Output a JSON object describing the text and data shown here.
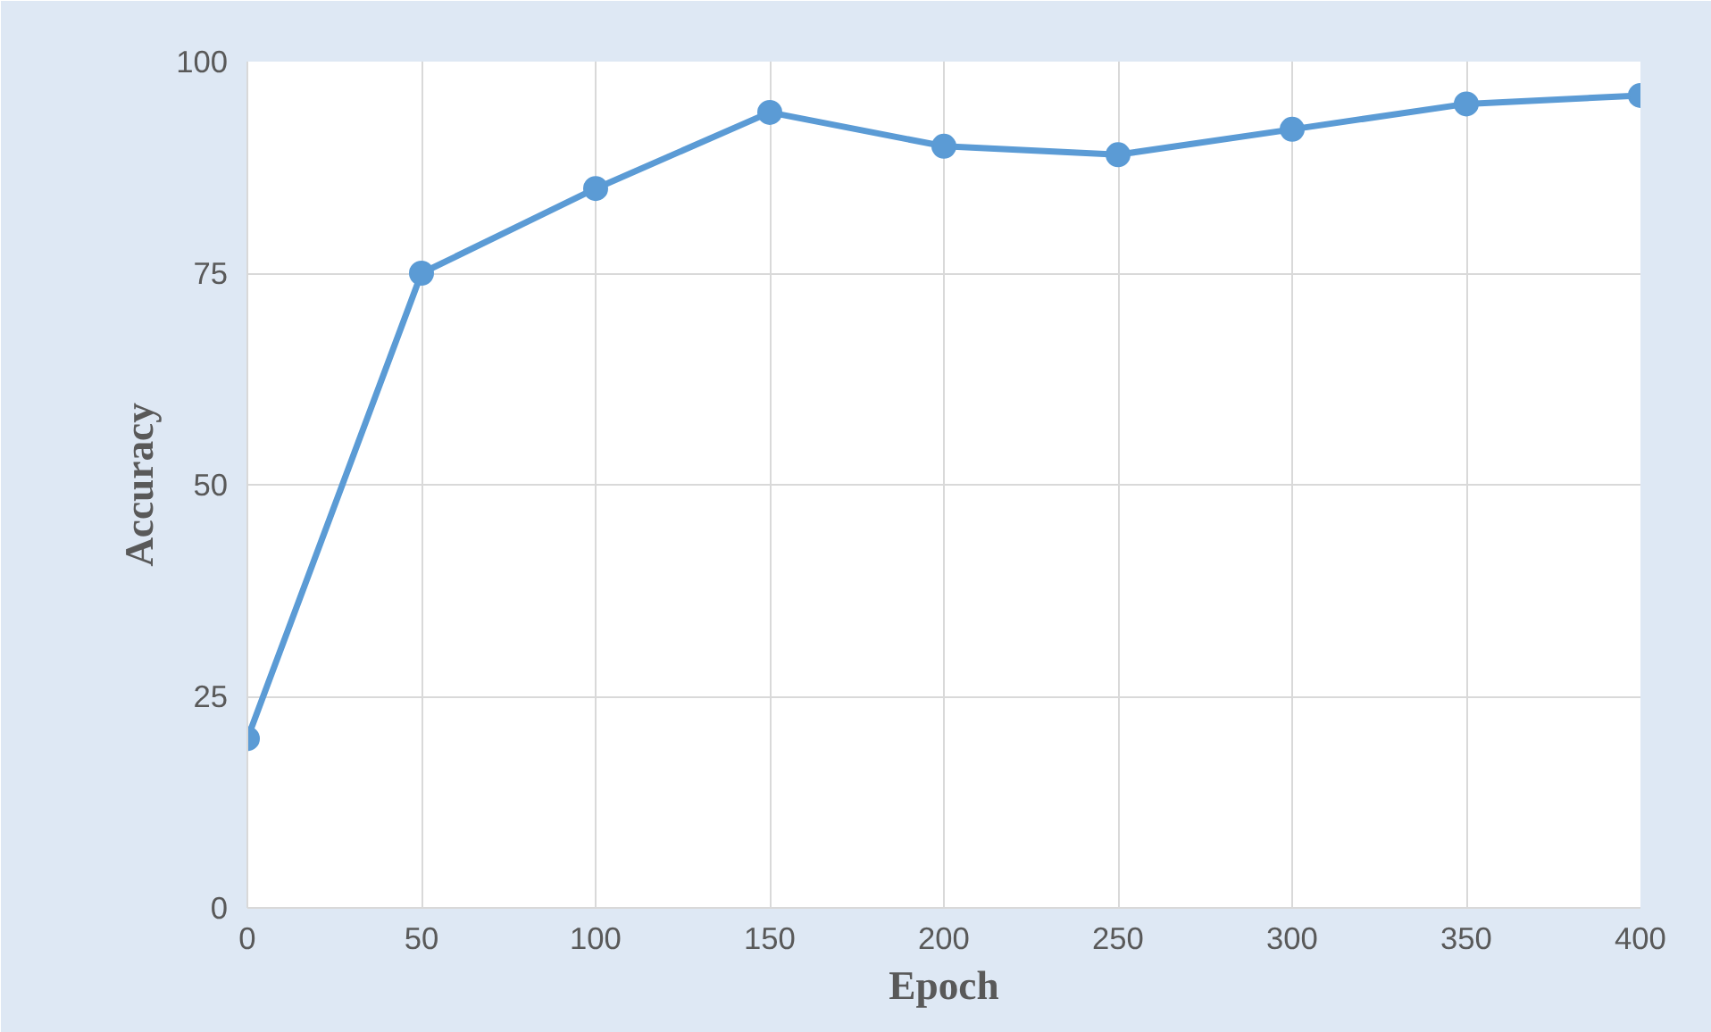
{
  "chart_data": {
    "type": "line",
    "xlabel": "Epoch",
    "ylabel": "Accuracy",
    "x": [
      0,
      50,
      100,
      150,
      200,
      250,
      300,
      350,
      400
    ],
    "series": [
      {
        "color": "#5b9bd5",
        "values": [
          20,
          75,
          85,
          94,
          90,
          89,
          92,
          95,
          96
        ]
      }
    ],
    "xlim": [
      0,
      400
    ],
    "ylim": [
      0,
      100
    ],
    "xticks": [
      0,
      50,
      100,
      150,
      200,
      250,
      300,
      350,
      400
    ],
    "yticks": [
      0,
      25,
      50,
      75,
      100
    ],
    "grid": true,
    "marker": "circle",
    "line_style": "solid"
  }
}
